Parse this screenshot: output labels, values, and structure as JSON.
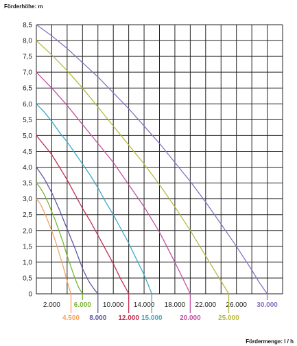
{
  "chart_data": {
    "type": "line",
    "ylabel": "Förderhöhe: m",
    "xlabel": "Fördermenge: l / h",
    "xlim": [
      0,
      32000
    ],
    "ylim": [
      0,
      8.5
    ],
    "y_ticks": [
      "0",
      "0,5",
      "1,0",
      "1,5",
      "2,0",
      "2,5",
      "3,0",
      "3,5",
      "4,0",
      "4,5",
      "5,0",
      "5,5",
      "6,0",
      "6,5",
      "7,0",
      "7,5",
      "8,0",
      "8,5"
    ],
    "x_tick_labels": [
      {
        "x": 2000,
        "label": "2.000"
      },
      {
        "x": 10000,
        "label": "10.000"
      },
      {
        "x": 14000,
        "label": "14.000"
      },
      {
        "x": 18000,
        "label": "18.000"
      },
      {
        "x": 22000,
        "label": "22.000"
      },
      {
        "x": 26000,
        "label": "26.000"
      }
    ],
    "grid": true,
    "series": [
      {
        "name": "4.500",
        "color": "#f5a060",
        "label_x": 4500,
        "label_row": 2,
        "x": [
          0,
          500,
          1000,
          1500,
          2000,
          2500,
          3000,
          3500,
          4000,
          4300,
          4500
        ],
        "y": [
          3.0,
          2.85,
          2.6,
          2.3,
          2.0,
          1.65,
          1.25,
          0.85,
          0.4,
          0.15,
          0.0
        ]
      },
      {
        "name": "6.000",
        "color": "#7ab630",
        "label_x": 6000,
        "label_row": 1,
        "x": [
          0,
          500,
          1000,
          1500,
          2000,
          2500,
          3000,
          3500,
          4000,
          4500,
          5000,
          5500,
          6000
        ],
        "y": [
          3.5,
          3.35,
          3.15,
          2.9,
          2.6,
          2.3,
          1.95,
          1.6,
          1.2,
          0.85,
          0.5,
          0.2,
          0.0
        ]
      },
      {
        "name": "8.000",
        "color": "#5a58a8",
        "label_x": 8000,
        "label_row": 2,
        "x": [
          0,
          1000,
          2000,
          3000,
          4000,
          5000,
          6000,
          6800,
          7500,
          8000
        ],
        "y": [
          4.0,
          3.65,
          3.2,
          2.65,
          2.05,
          1.45,
          0.8,
          0.4,
          0.15,
          0.0
        ]
      },
      {
        "name": "12.000",
        "color": "#c03050",
        "label_x": 12000,
        "label_row": 2,
        "x": [
          0,
          1000,
          2000,
          3000,
          4000,
          5000,
          6000,
          7000,
          8000,
          9000,
          10000,
          11000,
          11800,
          12000
        ],
        "y": [
          5.0,
          4.7,
          4.4,
          4.0,
          3.6,
          3.15,
          2.7,
          2.3,
          1.85,
          1.4,
          0.95,
          0.45,
          0.1,
          0.0
        ]
      },
      {
        "name": "15.000",
        "color": "#3aaac8",
        "label_x": 15000,
        "label_row": 2,
        "x": [
          0,
          1000,
          2000,
          3000,
          4000,
          5000,
          6000,
          7000,
          8000,
          9000,
          10000,
          11000,
          12000,
          13000,
          14000,
          14600,
          15000
        ],
        "y": [
          6.0,
          5.75,
          5.45,
          5.1,
          4.8,
          4.45,
          4.1,
          3.75,
          3.35,
          2.9,
          2.5,
          2.05,
          1.6,
          1.1,
          0.6,
          0.25,
          0.0
        ]
      },
      {
        "name": "20.000",
        "color": "#c050a0",
        "label_x": 20000,
        "label_row": 2,
        "x": [
          0,
          2000,
          4000,
          6000,
          8000,
          10000,
          12000,
          14000,
          16000,
          18000,
          19000,
          20000
        ],
        "y": [
          7.0,
          6.5,
          5.95,
          5.35,
          4.75,
          4.15,
          3.45,
          2.75,
          1.95,
          1.0,
          0.5,
          0.0
        ]
      },
      {
        "name": "25.000",
        "color": "#b8b840",
        "label_x": 25000,
        "label_row": 2,
        "x": [
          0,
          2000,
          4000,
          6000,
          8000,
          10000,
          12000,
          14000,
          16000,
          18000,
          20000,
          22000,
          24000,
          25000
        ],
        "y": [
          8.0,
          7.55,
          7.05,
          6.5,
          5.9,
          5.3,
          4.7,
          4.1,
          3.45,
          2.75,
          2.0,
          1.2,
          0.4,
          0.0
        ]
      },
      {
        "name": "30.000",
        "color": "#8870c0",
        "label_x": 30000,
        "label_row": 1,
        "x": [
          0,
          2000,
          4000,
          6000,
          8000,
          10000,
          12000,
          14000,
          16000,
          18000,
          20000,
          22000,
          24000,
          26000,
          28000,
          29000,
          30000
        ],
        "y": [
          8.5,
          8.15,
          7.75,
          7.3,
          6.85,
          6.35,
          5.85,
          5.3,
          4.75,
          4.15,
          3.55,
          2.9,
          2.2,
          1.5,
          0.75,
          0.35,
          0.0
        ]
      }
    ]
  }
}
